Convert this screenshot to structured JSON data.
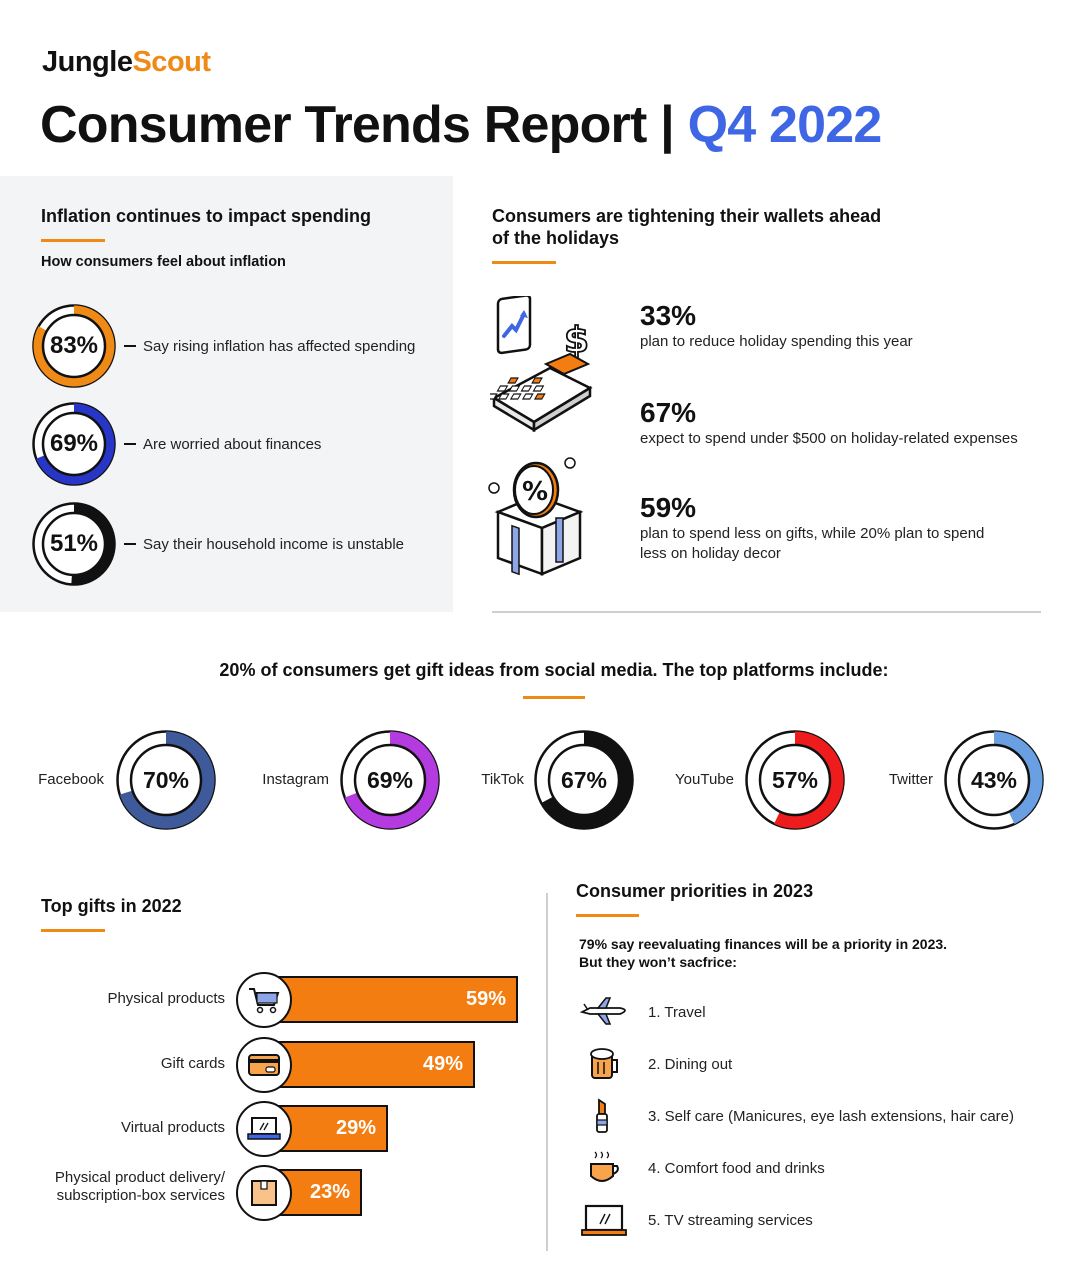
{
  "header": {
    "brand_part1": "Jungle",
    "brand_part2": "Scout",
    "title_main": "Consumer Trends Report |",
    "title_accent": "Q4 2022"
  },
  "inflation": {
    "heading": "Inflation continues to impact spending",
    "subheading": "How consumers feel about inflation",
    "items": [
      {
        "value": "83%",
        "percent": 83,
        "color": "#f08a16",
        "label": "Say rising inflation has affected spending"
      },
      {
        "value": "69%",
        "percent": 69,
        "color": "#2836c8",
        "label": "Are worried about finances"
      },
      {
        "value": "51%",
        "percent": 51,
        "color": "#111111",
        "label": "Say their household income is unstable"
      }
    ]
  },
  "wallets": {
    "heading_line1": "Consumers are tightening their wallets ahead",
    "heading_line2": "of the holidays",
    "stats": [
      {
        "value": "33%",
        "text": "plan to reduce holiday spending this year",
        "text2": ""
      },
      {
        "value": "67%",
        "text": "expect to spend under $500 on holiday-related expenses",
        "text2": ""
      },
      {
        "value": "59%",
        "text": "plan to spend less on gifts, while 20% plan to spend",
        "text2": "less on holiday decor"
      }
    ],
    "icons": [
      "trend-card-icon",
      "dollar-icon",
      "calculator-icon",
      "percent-gift-box-icon"
    ]
  },
  "social": {
    "heading": "20% of consumers get gift ideas from social media. The top platforms include:",
    "platforms": [
      {
        "name": "Facebook",
        "value": "70%",
        "percent": 70,
        "color": "#3f5a9a"
      },
      {
        "name": "Instagram",
        "value": "69%",
        "percent": 69,
        "color": "#b43be0"
      },
      {
        "name": "TikTok",
        "value": "67%",
        "percent": 67,
        "color": "#111111"
      },
      {
        "name": "YouTube",
        "value": "57%",
        "percent": 57,
        "color": "#ee1c1c"
      },
      {
        "name": "Twitter",
        "value": "43%",
        "percent": 43,
        "color": "#6a9fe2"
      }
    ]
  },
  "gifts": {
    "heading": "Top gifts in 2022",
    "items": [
      {
        "label_line1": "Physical products",
        "label_line2": "",
        "value": "59%",
        "percent": 59,
        "icon": "shopping-cart-icon"
      },
      {
        "label_line1": "Gift cards",
        "label_line2": "",
        "value": "49%",
        "percent": 49,
        "icon": "gift-card-icon"
      },
      {
        "label_line1": "Virtual products",
        "label_line2": "",
        "value": "29%",
        "percent": 29,
        "icon": "laptop-icon"
      },
      {
        "label_line1": "Physical product delivery/",
        "label_line2": "subscription-box services",
        "value": "23%",
        "percent": 23,
        "icon": "package-box-icon"
      }
    ]
  },
  "priorities": {
    "heading": "Consumer priorities in 2023",
    "intro_line1": "79% say reevaluating finances will be a priority in 2023.",
    "intro_line2": "But they won’t sacfrice:",
    "items": [
      {
        "text": "1. Travel",
        "icon": "airplane-icon"
      },
      {
        "text": "2. Dining out",
        "icon": "beer-mug-icon"
      },
      {
        "text": "3. Self care (Manicures, eye lash extensions, hair care)",
        "icon": "nail-polish-icon"
      },
      {
        "text": "4. Comfort food and drinks",
        "icon": "hot-drink-icon"
      },
      {
        "text": "5. TV streaming services",
        "icon": "tv-icon"
      }
    ]
  }
}
